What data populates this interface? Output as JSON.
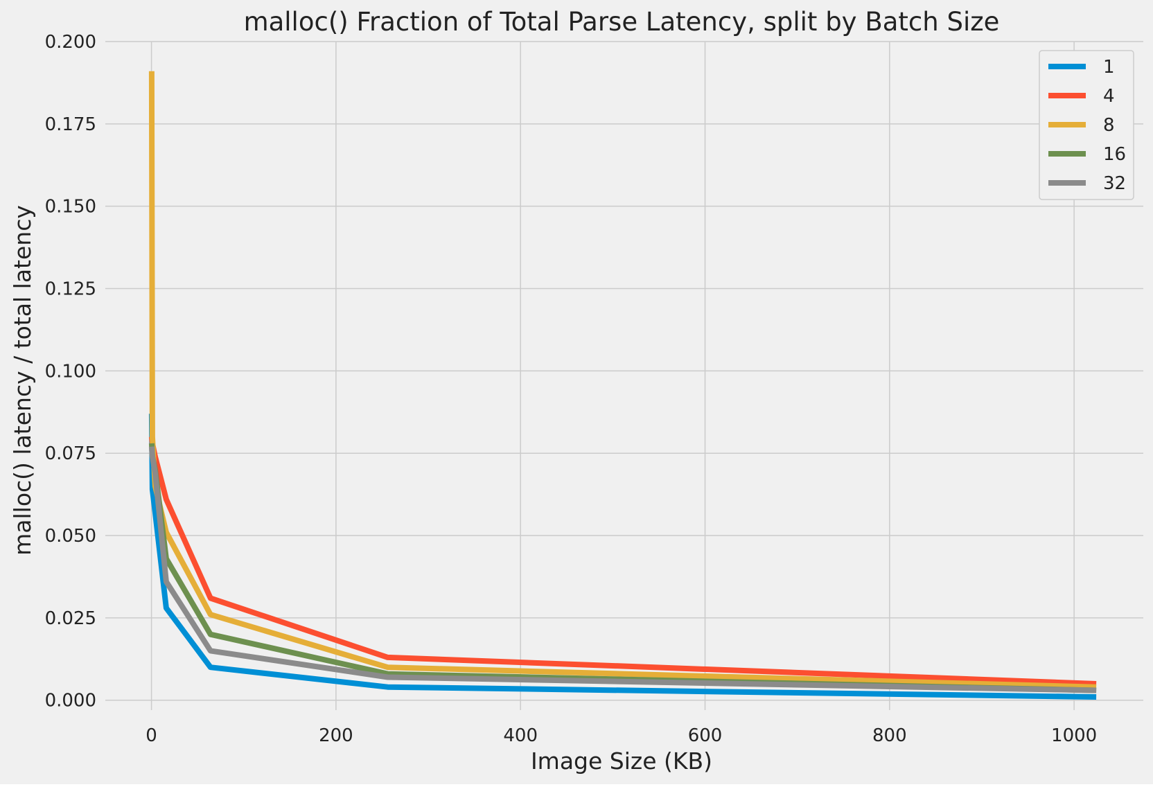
{
  "chart_data": {
    "type": "line",
    "title": "malloc() Fraction of Total Parse Latency, split by Batch Size",
    "xlabel": "Image Size (KB)",
    "ylabel": "malloc() latency / total latency",
    "xlim": [
      -50,
      1075
    ],
    "ylim": [
      -0.003,
      0.2
    ],
    "xticks": [
      0,
      200,
      400,
      600,
      800,
      1000
    ],
    "xtick_labels": [
      "0",
      "200",
      "400",
      "600",
      "800",
      "1000"
    ],
    "yticks": [
      0,
      0.025,
      0.05,
      0.075,
      0.1,
      0.125,
      0.15,
      0.175,
      0.2
    ],
    "ytick_labels": [
      "0.000",
      "0.025",
      "0.050",
      "0.075",
      "0.100",
      "0.125",
      "0.150",
      "0.175",
      "0.200"
    ],
    "grid": true,
    "legend_position": "top-right",
    "x": [
      0.25,
      1,
      4,
      16,
      64,
      256,
      1024
    ],
    "series": [
      {
        "name": "1",
        "color": "#008fd5",
        "values": [
          0.087,
          0.064,
          0.057,
          0.028,
          0.01,
          0.004,
          0.001
        ]
      },
      {
        "name": "4",
        "color": "#fc4f30",
        "values": [
          0.08,
          0.078,
          0.074,
          0.061,
          0.031,
          0.013,
          0.005
        ]
      },
      {
        "name": "8",
        "color": "#e5ae38",
        "values": [
          0.191,
          0.08,
          0.065,
          0.051,
          0.026,
          0.01,
          0.004
        ]
      },
      {
        "name": "16",
        "color": "#6d904f",
        "values": [
          0.078,
          0.074,
          0.07,
          0.043,
          0.02,
          0.008,
          0.003
        ]
      },
      {
        "name": "32",
        "color": "#8b8b8b",
        "values": [
          0.077,
          0.074,
          0.069,
          0.036,
          0.015,
          0.007,
          0.003
        ]
      }
    ]
  }
}
